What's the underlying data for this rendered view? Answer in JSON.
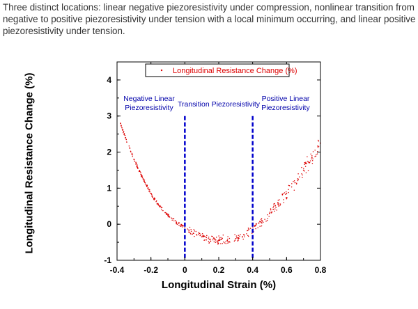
{
  "caption": "Three distinct locations: linear negative piezoresistivity under compression, nonlinear transition from negative to positive piezoresistivity under tension with a local minimum occurring, and linear positive piezoresistivity under tension.",
  "colors": {
    "series": "#dd0000",
    "divider": "#0000cc",
    "axis": "#000000",
    "region_text": "#0000aa"
  },
  "chart_data": {
    "type": "scatter",
    "title": "",
    "xlabel": "Longitudinal Strain (%)",
    "ylabel": "Longitudinal Resistance Change (%)",
    "xlim": [
      -0.4,
      0.8
    ],
    "ylim": [
      -1,
      4.5
    ],
    "xticks": [
      "-0.4",
      "-0.2",
      "0",
      "0.2",
      "0.4",
      "0.6",
      "0.8"
    ],
    "yticks": [
      "-1",
      "0",
      "1",
      "2",
      "3",
      "4"
    ],
    "grid": false,
    "legend": {
      "position": "top-center",
      "entries": [
        "Longitudinal Resistance Change (%)"
      ]
    },
    "series": [
      {
        "name": "Longitudinal Resistance Change (%)",
        "marker": "dot",
        "points": [
          [
            -0.38,
            2.8
          ],
          [
            -0.35,
            2.4
          ],
          [
            -0.3,
            1.8
          ],
          [
            -0.25,
            1.3
          ],
          [
            -0.2,
            0.85
          ],
          [
            -0.15,
            0.5
          ],
          [
            -0.1,
            0.25
          ],
          [
            -0.05,
            0.05
          ],
          [
            0.0,
            -0.1
          ],
          [
            0.05,
            -0.25
          ],
          [
            0.1,
            -0.35
          ],
          [
            0.15,
            -0.42
          ],
          [
            0.2,
            -0.45
          ],
          [
            0.25,
            -0.45
          ],
          [
            0.3,
            -0.4
          ],
          [
            0.35,
            -0.3
          ],
          [
            0.4,
            -0.15
          ],
          [
            0.45,
            0.05
          ],
          [
            0.5,
            0.3
          ],
          [
            0.55,
            0.55
          ],
          [
            0.6,
            0.85
          ],
          [
            0.65,
            1.15
          ],
          [
            0.7,
            1.5
          ],
          [
            0.75,
            1.85
          ],
          [
            0.8,
            2.25
          ]
        ]
      }
    ],
    "dividers": [
      0,
      0.4
    ],
    "annotations": [
      {
        "text": "Negative Linear\nPiezoresistivity",
        "x": -0.25,
        "y": 3.4
      },
      {
        "text": "Transition Piezoresistivity",
        "x": 0.2,
        "y": 3.1
      },
      {
        "text": "Positive Linear\nPiezoresistivity",
        "x": 0.6,
        "y": 3.4
      }
    ]
  }
}
